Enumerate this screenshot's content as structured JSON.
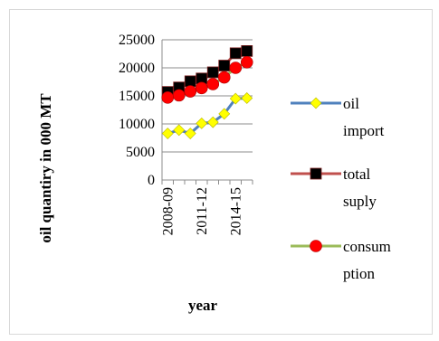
{
  "chart_data": {
    "type": "line",
    "title": "",
    "xlabel": "year",
    "ylabel": "oil quantiry in 000 MT",
    "ylim": [
      0,
      25000
    ],
    "y_ticks": [
      "25000",
      "20000",
      "15000",
      "10000",
      "5000",
      "0"
    ],
    "y_tick_values": [
      25000,
      20000,
      15000,
      10000,
      5000,
      0
    ],
    "categories": [
      "2008-09",
      "2009-10",
      "2010-11",
      "2011-12",
      "2012-13",
      "2013-14",
      "2014-15",
      "2015-16"
    ],
    "x_tick_labels": [
      "2008-09",
      "2011-12",
      "2014-15"
    ],
    "x_tick_indices": [
      0,
      3,
      6
    ],
    "grid": true,
    "legend_position": "right",
    "series": [
      {
        "name": "oil import",
        "legend_lines": [
          "oil",
          "import"
        ],
        "line_color": "#4f81bd",
        "marker": "diamond",
        "marker_color": "#ffff00",
        "values": [
          8300,
          8900,
          8300,
          10100,
          10300,
          11800,
          14500,
          14600
        ]
      },
      {
        "name": "total suply",
        "legend_lines": [
          "total",
          "suply"
        ],
        "line_color": "#c0504d",
        "marker": "square",
        "marker_color": "#000000",
        "values": [
          15700,
          16500,
          17600,
          18100,
          19200,
          20400,
          22600,
          23000
        ]
      },
      {
        "name": "consumption",
        "legend_lines": [
          "consum",
          "ption"
        ],
        "line_color": "#9bbb59",
        "marker": "circle",
        "marker_color": "#ff0000",
        "values": [
          14700,
          15100,
          15800,
          16400,
          17100,
          18300,
          20000,
          21000
        ]
      }
    ]
  }
}
